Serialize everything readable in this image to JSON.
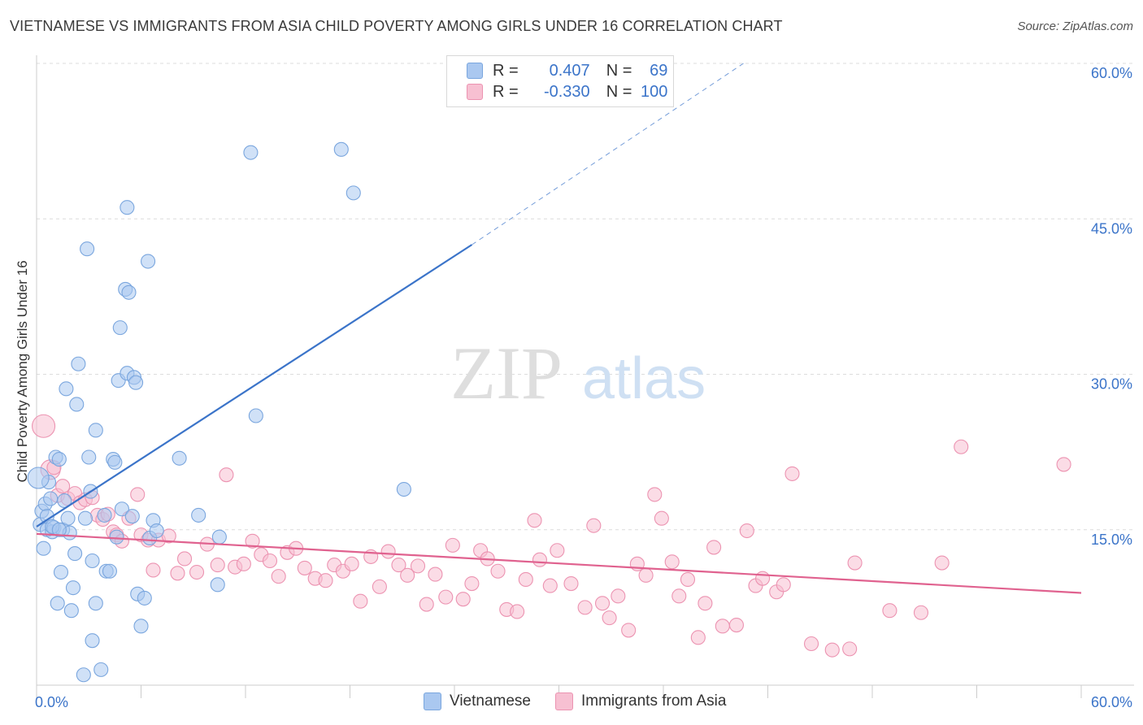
{
  "title": "VIETNAMESE VS IMMIGRANTS FROM ASIA CHILD POVERTY AMONG GIRLS UNDER 16 CORRELATION CHART",
  "source": "Source: ZipAtlas.com",
  "watermark": {
    "zip": "ZIP",
    "atlas": "atlas"
  },
  "legend": {
    "rows": [
      {
        "r_label": "R =",
        "r_value": "0.407",
        "n_label": "N =",
        "n_value": "69"
      },
      {
        "r_label": "R =",
        "r_value": "-0.330",
        "n_label": "N =",
        "n_value": "100"
      }
    ]
  },
  "bottom_legend": [
    "Vietnamese",
    "Immigrants from Asia"
  ],
  "colors": {
    "blue_fill": "#aac8f0",
    "blue_stroke": "#7aa6de",
    "blue_line": "#3b74c9",
    "pink_fill": "#f7c0d2",
    "pink_stroke": "#ec93b1",
    "pink_line": "#e0628f",
    "axis_label": "#3b74c9",
    "grid": "#dcdcdc"
  },
  "chart_data": {
    "type": "scatter",
    "title": "VIETNAMESE VS IMMIGRANTS FROM ASIA CHILD POVERTY AMONG GIRLS UNDER 16 CORRELATION CHART",
    "xlabel": "",
    "ylabel": "Child Poverty Among Girls Under 16",
    "xlim": [
      0,
      60
    ],
    "ylim": [
      0,
      60
    ],
    "x_ticks": [
      "0.0%",
      "60.0%"
    ],
    "y_ticks": [
      "15.0%",
      "30.0%",
      "45.0%",
      "60.0%"
    ],
    "grid": true,
    "legend_position": "top-center",
    "series": [
      {
        "name": "Vietnamese",
        "r": 0.407,
        "n": 69,
        "trend": {
          "x0": 0,
          "y0": 15.3,
          "x1": 25,
          "y1": 42.5,
          "dash_to_x": 40.6,
          "dash_to_y": 60
        },
        "points": [
          [
            0.2,
            15.5
          ],
          [
            0.3,
            16.8
          ],
          [
            0.4,
            13.2
          ],
          [
            0.5,
            17.5
          ],
          [
            0.6,
            15.0
          ],
          [
            0.6,
            16.3
          ],
          [
            0.7,
            19.6
          ],
          [
            0.8,
            18.0
          ],
          [
            0.9,
            14.8
          ],
          [
            1.0,
            15.2
          ],
          [
            1.1,
            22.0
          ],
          [
            1.2,
            7.9
          ],
          [
            1.3,
            21.8
          ],
          [
            1.4,
            10.9
          ],
          [
            1.5,
            15.0
          ],
          [
            1.6,
            17.8
          ],
          [
            1.7,
            28.6
          ],
          [
            1.8,
            16.1
          ],
          [
            1.9,
            14.7
          ],
          [
            2.0,
            7.2
          ],
          [
            2.1,
            9.4
          ],
          [
            2.2,
            12.7
          ],
          [
            2.3,
            27.1
          ],
          [
            2.4,
            31.0
          ],
          [
            2.7,
            1.0
          ],
          [
            2.8,
            16.1
          ],
          [
            2.9,
            42.1
          ],
          [
            3.0,
            22.0
          ],
          [
            3.1,
            18.7
          ],
          [
            3.2,
            12.0
          ],
          [
            3.2,
            4.3
          ],
          [
            3.4,
            24.6
          ],
          [
            3.4,
            7.9
          ],
          [
            3.7,
            1.5
          ],
          [
            3.9,
            16.4
          ],
          [
            4.0,
            11.0
          ],
          [
            4.2,
            11.0
          ],
          [
            4.4,
            21.8
          ],
          [
            4.5,
            21.5
          ],
          [
            4.6,
            14.3
          ],
          [
            4.7,
            29.4
          ],
          [
            4.8,
            34.5
          ],
          [
            4.9,
            17.0
          ],
          [
            5.1,
            38.2
          ],
          [
            5.2,
            30.1
          ],
          [
            5.2,
            46.1
          ],
          [
            5.3,
            37.9
          ],
          [
            5.5,
            16.3
          ],
          [
            5.6,
            29.7
          ],
          [
            5.7,
            29.2
          ],
          [
            5.8,
            8.8
          ],
          [
            6.0,
            5.7
          ],
          [
            6.2,
            8.4
          ],
          [
            6.4,
            40.9
          ],
          [
            6.5,
            14.2
          ],
          [
            6.7,
            15.9
          ],
          [
            6.9,
            14.9
          ],
          [
            8.2,
            21.9
          ],
          [
            9.3,
            16.4
          ],
          [
            10.4,
            9.7
          ],
          [
            10.5,
            14.3
          ],
          [
            12.3,
            51.4
          ],
          [
            12.6,
            26.0
          ],
          [
            17.5,
            51.7
          ],
          [
            18.2,
            47.5
          ],
          [
            21.1,
            18.9
          ],
          [
            0.1,
            20.0
          ],
          [
            0.9,
            15.3
          ],
          [
            1.3,
            15.0
          ]
        ]
      },
      {
        "name": "Immigrants from Asia",
        "r": -0.33,
        "n": 100,
        "trend": {
          "x0": 0,
          "y0": 14.6,
          "x1": 60,
          "y1": 8.9
        },
        "points": [
          [
            0.4,
            25.0
          ],
          [
            0.8,
            20.8
          ],
          [
            1.0,
            21.0
          ],
          [
            1.2,
            18.3
          ],
          [
            1.5,
            19.2
          ],
          [
            1.8,
            18.0
          ],
          [
            2.2,
            18.5
          ],
          [
            2.5,
            17.6
          ],
          [
            2.8,
            17.9
          ],
          [
            3.2,
            18.1
          ],
          [
            3.5,
            16.4
          ],
          [
            3.8,
            16.0
          ],
          [
            4.1,
            16.5
          ],
          [
            4.4,
            14.8
          ],
          [
            4.6,
            14.5
          ],
          [
            4.9,
            13.9
          ],
          [
            5.3,
            16.1
          ],
          [
            5.8,
            18.4
          ],
          [
            6.0,
            14.5
          ],
          [
            6.4,
            14.0
          ],
          [
            6.7,
            11.1
          ],
          [
            7.0,
            14.0
          ],
          [
            7.6,
            14.4
          ],
          [
            8.1,
            10.8
          ],
          [
            8.5,
            12.2
          ],
          [
            9.2,
            10.9
          ],
          [
            9.8,
            13.6
          ],
          [
            10.4,
            11.6
          ],
          [
            10.9,
            20.3
          ],
          [
            11.4,
            11.4
          ],
          [
            11.9,
            11.7
          ],
          [
            12.4,
            13.9
          ],
          [
            12.9,
            12.6
          ],
          [
            13.4,
            12.0
          ],
          [
            13.9,
            10.5
          ],
          [
            14.4,
            12.8
          ],
          [
            14.9,
            13.2
          ],
          [
            15.4,
            11.3
          ],
          [
            16.0,
            10.3
          ],
          [
            16.6,
            10.1
          ],
          [
            17.1,
            11.6
          ],
          [
            17.6,
            11.0
          ],
          [
            18.1,
            11.7
          ],
          [
            18.6,
            8.1
          ],
          [
            19.2,
            12.4
          ],
          [
            19.7,
            9.5
          ],
          [
            20.2,
            12.9
          ],
          [
            20.8,
            11.6
          ],
          [
            21.3,
            10.6
          ],
          [
            21.9,
            11.5
          ],
          [
            22.4,
            7.8
          ],
          [
            22.9,
            10.7
          ],
          [
            23.5,
            8.5
          ],
          [
            23.9,
            13.5
          ],
          [
            24.5,
            8.3
          ],
          [
            25.0,
            9.8
          ],
          [
            25.5,
            13.0
          ],
          [
            25.9,
            12.2
          ],
          [
            26.5,
            11.0
          ],
          [
            27.0,
            7.3
          ],
          [
            27.6,
            7.1
          ],
          [
            28.1,
            10.2
          ],
          [
            28.6,
            15.9
          ],
          [
            28.9,
            12.1
          ],
          [
            29.5,
            9.6
          ],
          [
            29.9,
            13.0
          ],
          [
            30.7,
            9.8
          ],
          [
            31.5,
            7.5
          ],
          [
            32.0,
            15.4
          ],
          [
            32.5,
            7.9
          ],
          [
            32.9,
            6.5
          ],
          [
            33.4,
            8.6
          ],
          [
            34.0,
            5.3
          ],
          [
            34.5,
            11.7
          ],
          [
            35.0,
            10.6
          ],
          [
            35.5,
            18.4
          ],
          [
            35.9,
            16.1
          ],
          [
            36.5,
            11.9
          ],
          [
            36.9,
            8.6
          ],
          [
            37.4,
            10.2
          ],
          [
            38.0,
            4.6
          ],
          [
            38.4,
            7.9
          ],
          [
            38.9,
            13.3
          ],
          [
            39.4,
            5.7
          ],
          [
            40.2,
            5.8
          ],
          [
            40.8,
            14.9
          ],
          [
            41.3,
            9.6
          ],
          [
            41.7,
            10.3
          ],
          [
            42.5,
            9.0
          ],
          [
            42.9,
            9.7
          ],
          [
            43.4,
            20.4
          ],
          [
            44.5,
            4.0
          ],
          [
            45.7,
            3.4
          ],
          [
            46.7,
            3.5
          ],
          [
            47.0,
            11.8
          ],
          [
            49.0,
            7.2
          ],
          [
            50.8,
            7.0
          ],
          [
            52.0,
            11.8
          ],
          [
            53.1,
            23.0
          ],
          [
            59.0,
            21.3
          ]
        ]
      }
    ]
  }
}
